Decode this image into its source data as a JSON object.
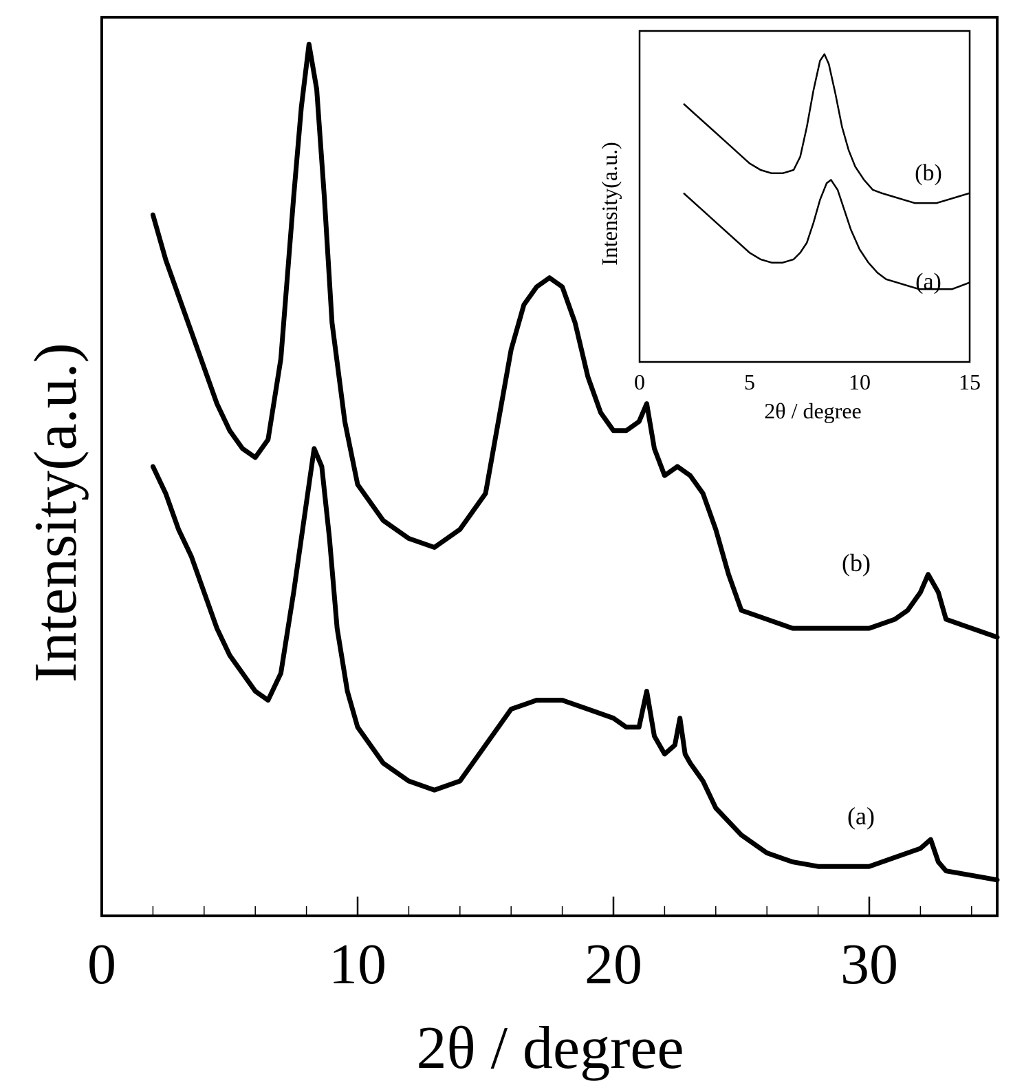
{
  "chart_data": [
    {
      "type": "line",
      "title": "",
      "xlabel": "2θ / degree",
      "ylabel": "Intensity(a.u.)",
      "xlim": [
        0,
        35
      ],
      "ylim": [
        0,
        100
      ],
      "xticks": [
        0,
        10,
        20,
        30
      ],
      "xtick_labels": [
        "0",
        "10",
        "20",
        "30"
      ],
      "yticks": [],
      "grid": false,
      "series": [
        {
          "name": "(b)",
          "x": [
            2,
            2.5,
            3,
            3.5,
            4,
            4.5,
            5,
            5.5,
            6,
            6.5,
            7,
            7.5,
            7.8,
            8.1,
            8.4,
            8.7,
            9,
            9.5,
            10,
            11,
            12,
            13,
            14,
            15,
            15.5,
            16,
            16.5,
            17,
            17.5,
            18,
            18.5,
            19,
            19.5,
            20,
            20.5,
            21,
            21.3,
            21.6,
            22,
            22.5,
            23,
            23.5,
            24,
            24.5,
            25,
            26,
            27,
            28,
            29,
            30,
            31,
            31.5,
            32,
            32.3,
            32.7,
            33,
            34,
            35
          ],
          "y": [
            78,
            73,
            69,
            65,
            61,
            57,
            54,
            52,
            51,
            53,
            62,
            80,
            90,
            97,
            92,
            80,
            66,
            55,
            48,
            44,
            42,
            41,
            43,
            47,
            55,
            63,
            68,
            70,
            71,
            70,
            66,
            60,
            56,
            54,
            54,
            55,
            57,
            52,
            49,
            50,
            49,
            47,
            43,
            38,
            34,
            33,
            32,
            32,
            32,
            32,
            33,
            34,
            36,
            38,
            36,
            33,
            32,
            31
          ]
        },
        {
          "name": "(a)",
          "x": [
            2,
            2.5,
            3,
            3.5,
            4,
            4.5,
            5,
            5.5,
            6,
            6.5,
            7,
            7.5,
            8,
            8.3,
            8.6,
            8.9,
            9.2,
            9.6,
            10,
            11,
            12,
            13,
            14,
            15,
            16,
            17,
            18,
            19,
            20,
            20.5,
            21,
            21.3,
            21.6,
            22,
            22.4,
            22.6,
            22.8,
            23,
            23.5,
            24,
            25,
            26,
            27,
            28,
            29,
            30,
            31,
            32,
            32.4,
            32.7,
            33,
            34,
            35
          ],
          "y": [
            50,
            47,
            43,
            40,
            36,
            32,
            29,
            27,
            25,
            24,
            27,
            36,
            46,
            52,
            50,
            42,
            32,
            25,
            21,
            17,
            15,
            14,
            15,
            19,
            23,
            24,
            24,
            23,
            22,
            21,
            21,
            25,
            20,
            18,
            19,
            22,
            18,
            17,
            15,
            12,
            9,
            7,
            6,
            5.5,
            5.5,
            5.5,
            6.5,
            7.5,
            8.5,
            6,
            5,
            4.5,
            4
          ]
        }
      ],
      "annotations": [
        "(b)",
        "(a)"
      ]
    },
    {
      "type": "line",
      "title": "",
      "xlabel": "2θ / degree",
      "ylabel": "Intensity(a.u.)",
      "xlim": [
        0,
        15
      ],
      "ylim": [
        0,
        100
      ],
      "xticks": [
        0,
        5,
        10,
        15
      ],
      "xtick_labels": [
        "0",
        "5",
        "10",
        "15"
      ],
      "yticks": [],
      "grid": false,
      "series": [
        {
          "name": "(b)",
          "x": [
            2,
            2.5,
            3,
            3.5,
            4,
            4.5,
            5,
            5.5,
            6,
            6.5,
            7,
            7.3,
            7.6,
            7.9,
            8.2,
            8.4,
            8.6,
            8.9,
            9.2,
            9.5,
            9.8,
            10.2,
            10.6,
            11,
            11.5,
            12,
            12.5,
            13,
            13.5,
            14,
            14.5,
            15
          ],
          "y": [
            78,
            75,
            72,
            69,
            66,
            63,
            60,
            58,
            57,
            57,
            58,
            62,
            71,
            82,
            91,
            93,
            90,
            81,
            71,
            64,
            59,
            55,
            52,
            51,
            50,
            49,
            48,
            48,
            48,
            49,
            50,
            51
          ]
        },
        {
          "name": "(a)",
          "x": [
            2,
            2.5,
            3,
            3.5,
            4,
            4.5,
            5,
            5.5,
            6,
            6.5,
            7,
            7.3,
            7.6,
            7.9,
            8.2,
            8.5,
            8.7,
            9,
            9.3,
            9.6,
            10,
            10.4,
            10.8,
            11.2,
            11.7,
            12.2,
            12.7,
            13.2,
            13.7,
            14.2,
            14.6,
            15
          ],
          "y": [
            51,
            48,
            45,
            42,
            39,
            36,
            33,
            31,
            30,
            30,
            31,
            33,
            36,
            42,
            49,
            54,
            55,
            52,
            46,
            40,
            34,
            30,
            27,
            25,
            24,
            23,
            22,
            22,
            22,
            22,
            23,
            24
          ]
        }
      ],
      "annotations": [
        "(b)",
        "(a)"
      ]
    }
  ]
}
